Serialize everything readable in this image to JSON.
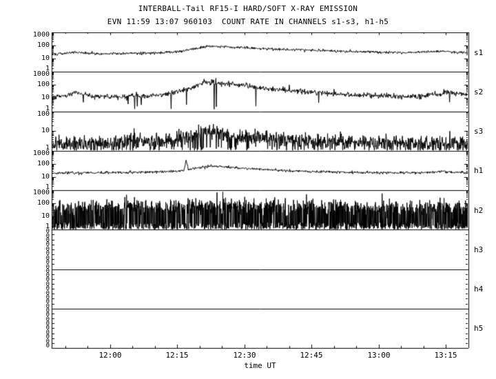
{
  "page": {
    "title_line1": "INTERBALL-Tail RF15-I HARD/SOFT X-RAY EMISSION",
    "title_line2": "EVN 11:59 13:07 960103  COUNT RATE IN CHANNELS s1-s3, h1-h5"
  },
  "chart_data": {
    "type": "line",
    "title": "INTERBALL-Tail RF15-I HARD/SOFT X-RAY EMISSION",
    "subtitle": "EVN 11:59 13:07 960103  COUNT RATE IN CHANNELS s1-s3, h1-h5",
    "xlabel": "time UT",
    "background": "#ffffff",
    "line_color": "#000000",
    "x_range_min": [
      707,
      800
    ],
    "x_minor_step_min": 5,
    "x_major_ticks": [
      {
        "t": 720,
        "label": "12:00"
      },
      {
        "t": 735,
        "label": "12:15"
      },
      {
        "t": 750,
        "label": "12:30"
      },
      {
        "t": 765,
        "label": "12:45"
      },
      {
        "t": 780,
        "label": "13:00"
      },
      {
        "t": 795,
        "label": "13:15"
      }
    ],
    "panels": [
      {
        "id": "s1",
        "label": "s1",
        "scale": "log",
        "ymin": 1,
        "ymax": 1000,
        "yticks": [
          {
            "v": 1000,
            "label": "1000"
          },
          {
            "v": 100,
            "label": "100"
          },
          {
            "v": 10,
            "label": "10"
          },
          {
            "v": 1,
            "label": "1"
          }
        ],
        "series": {
          "seed": 101,
          "samples": 950,
          "sigma": 0.05,
          "spike_prob": 0,
          "spike_log_max": 0,
          "keypoints": [
            [
              707,
              22
            ],
            [
              710,
              25
            ],
            [
              712,
              31
            ],
            [
              714,
              27
            ],
            [
              718,
              24
            ],
            [
              724,
              25
            ],
            [
              730,
              27
            ],
            [
              735,
              34
            ],
            [
              739,
              60
            ],
            [
              742,
              88
            ],
            [
              745,
              83
            ],
            [
              750,
              70
            ],
            [
              756,
              56
            ],
            [
              763,
              46
            ],
            [
              771,
              38
            ],
            [
              779,
              32
            ],
            [
              786,
              29
            ],
            [
              791,
              33
            ],
            [
              794,
              37
            ],
            [
              797,
              32
            ],
            [
              800,
              29
            ]
          ]
        }
      },
      {
        "id": "s2",
        "label": "s2",
        "scale": "log",
        "ymin": 1,
        "ymax": 1000,
        "yticks": [
          {
            "v": 1000,
            "label": "1000"
          },
          {
            "v": 100,
            "label": "100"
          },
          {
            "v": 10,
            "label": "10"
          },
          {
            "v": 1,
            "label": "1"
          }
        ],
        "series": {
          "seed": 202,
          "samples": 950,
          "sigma": 0.1,
          "spike_prob": 0.02,
          "spike_log_max": 0.7,
          "keypoints": [
            [
              707,
              12
            ],
            [
              710,
              14
            ],
            [
              712,
              28
            ],
            [
              714,
              20
            ],
            [
              717,
              13
            ],
            [
              723,
              13
            ],
            [
              729,
              16
            ],
            [
              734,
              24
            ],
            [
              738,
              55
            ],
            [
              741,
              150
            ],
            [
              743,
              160
            ],
            [
              746,
              130
            ],
            [
              750,
              85
            ],
            [
              755,
              55
            ],
            [
              761,
              36
            ],
            [
              768,
              24
            ],
            [
              775,
              18
            ],
            [
              782,
              15
            ],
            [
              788,
              13
            ],
            [
              792,
              16
            ],
            [
              795,
              26
            ],
            [
              797,
              22
            ],
            [
              800,
              19
            ]
          ]
        }
      },
      {
        "id": "s3",
        "label": "s3",
        "scale": "log",
        "ymin": 1,
        "ymax": 100,
        "yticks": [
          {
            "v": 100,
            "label": "100"
          },
          {
            "v": 10,
            "label": "10"
          },
          {
            "v": 1,
            "label": "1"
          }
        ],
        "series": {
          "seed": 303,
          "samples": 1300,
          "sigma": 0.2,
          "spike_prob": 0.12,
          "spike_log_max": 0.25,
          "keypoints": [
            [
              707,
              2.2
            ],
            [
              715,
              2.4
            ],
            [
              725,
              2.8
            ],
            [
              733,
              3.6
            ],
            [
              738,
              5.5
            ],
            [
              741,
              8.5
            ],
            [
              744,
              7.5
            ],
            [
              749,
              5.5
            ],
            [
              755,
              4.2
            ],
            [
              762,
              3.4
            ],
            [
              770,
              2.9
            ],
            [
              780,
              2.5
            ],
            [
              790,
              2.3
            ],
            [
              800,
              2.4
            ]
          ]
        }
      },
      {
        "id": "h1",
        "label": "h1",
        "scale": "log",
        "ymin": 1,
        "ymax": 1000,
        "yticks": [
          {
            "v": 1000,
            "label": "1000"
          },
          {
            "v": 100,
            "label": "100"
          },
          {
            "v": 10,
            "label": "10"
          },
          {
            "v": 1,
            "label": "1"
          }
        ],
        "series": {
          "seed": 404,
          "samples": 950,
          "sigma": 0.05,
          "spike_prob": 0,
          "spike_log_max": 0,
          "keypoints": [
            [
              707,
              20
            ],
            [
              714,
              21
            ],
            [
              722,
              22
            ],
            [
              730,
              24
            ],
            [
              735,
              28
            ],
            [
              736.5,
              30
            ],
            [
              737,
              230
            ],
            [
              737.5,
              36
            ],
            [
              739,
              45
            ],
            [
              742,
              70
            ],
            [
              745,
              62
            ],
            [
              749,
              48
            ],
            [
              754,
              38
            ],
            [
              760,
              30
            ],
            [
              768,
              25
            ],
            [
              776,
              22
            ],
            [
              784,
              21
            ],
            [
              791,
              22
            ],
            [
              794,
              27
            ],
            [
              797,
              23
            ],
            [
              800,
              22
            ]
          ]
        }
      },
      {
        "id": "h2",
        "label": "h2",
        "scale": "log",
        "ymin": 1,
        "ymax": 1000,
        "yticks": [
          {
            "v": 1000,
            "label": "1000"
          },
          {
            "v": 100,
            "label": "100"
          },
          {
            "v": 10,
            "label": "10"
          },
          {
            "v": 1,
            "label": "1"
          }
        ],
        "series": {
          "seed": 505,
          "samples": 2000,
          "sigma": 0.33,
          "spike_prob": 0.5,
          "spike_log_max": 0.55,
          "keypoints": [
            [
              707,
              42
            ],
            [
              718,
              44
            ],
            [
              728,
              47
            ],
            [
              734,
              55
            ],
            [
              736.5,
              60
            ],
            [
              737,
              110
            ],
            [
              738,
              70
            ],
            [
              742,
              60
            ],
            [
              748,
              55
            ],
            [
              756,
              50
            ],
            [
              766,
              45
            ],
            [
              778,
              42
            ],
            [
              790,
              41
            ],
            [
              800,
              43
            ]
          ]
        }
      },
      {
        "id": "h3",
        "label": "h3",
        "scale": "zero",
        "zero_ticks": 9,
        "zero_label": "0"
      },
      {
        "id": "h4",
        "label": "h4",
        "scale": "zero",
        "zero_ticks": 9,
        "zero_label": "0"
      },
      {
        "id": "h5",
        "label": "h5",
        "scale": "zero",
        "zero_ticks": 9,
        "zero_label": "0"
      }
    ]
  }
}
